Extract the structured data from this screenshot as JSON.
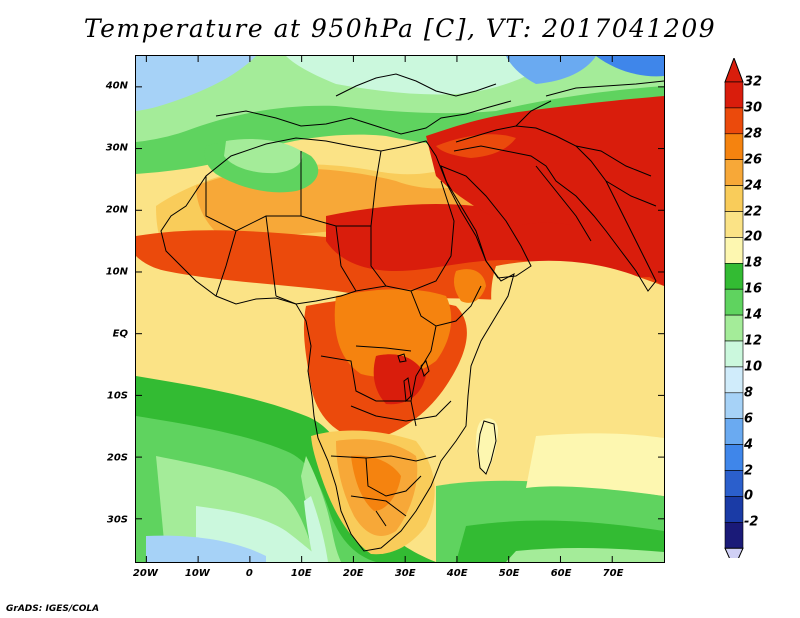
{
  "title": "Temperature at 950hPa [C], VT: 2017041209",
  "credit": "GrADS: IGES/COLA",
  "map": {
    "projection": "latlon",
    "lon_range": [
      -22,
      80
    ],
    "lat_range": [
      -37,
      45
    ],
    "variable": "temperature",
    "level": "950hPa",
    "units": "C",
    "valid_time": "2017041209",
    "lat_ticks": [
      "40N",
      "30N",
      "20N",
      "10N",
      "EQ",
      "10S",
      "20S",
      "30S"
    ],
    "lon_ticks": [
      "20W",
      "10W",
      "0",
      "10E",
      "20E",
      "30E",
      "40E",
      "50E",
      "60E",
      "70E"
    ],
    "features": [
      "coastlines",
      "country-borders"
    ]
  },
  "colorbar": {
    "labels": [
      "32",
      "30",
      "28",
      "26",
      "24",
      "22",
      "20",
      "18",
      "16",
      "14",
      "12",
      "10",
      "8",
      "6",
      "4",
      "2",
      "0",
      "-2"
    ],
    "colors": [
      "#d91d0c",
      "#eb4a0c",
      "#f5830f",
      "#f7a838",
      "#f9cc5a",
      "#fbe386",
      "#fdf7b0",
      "#33bb33",
      "#5fd35f",
      "#a4ec99",
      "#cbf8dd",
      "#d0ecfb",
      "#a6d2f7",
      "#6aaaf1",
      "#3f86ea",
      "#2b5fcc",
      "#1a3ba6",
      "#1a1a78"
    ],
    "overflow_high": "#d91d0c",
    "overflow_low": "#d0d0f5"
  }
}
